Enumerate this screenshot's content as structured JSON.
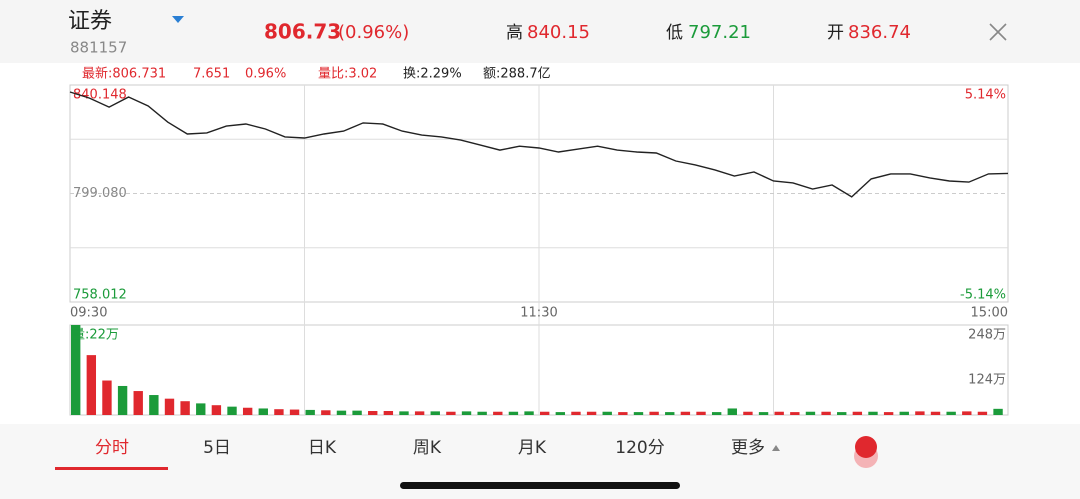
{
  "header": {
    "title": "证券",
    "code": "881157",
    "price": "806.73",
    "change": "(0.96%)",
    "high": {
      "label": "高",
      "value": "840.15"
    },
    "low": {
      "label": "低",
      "value": "797.21"
    },
    "open": {
      "label": "开",
      "value": "836.74"
    }
  },
  "info": [
    "最新:806.731",
    "7.651",
    "0.96%",
    "量比:3.02",
    "换:2.29%",
    "额:288.7亿"
  ],
  "chart_data": [
    {
      "type": "line",
      "color": "#222222",
      "x": [
        0,
        5,
        10,
        15,
        20,
        25,
        30,
        35,
        40,
        45,
        50,
        55,
        60,
        65,
        70,
        75,
        80,
        85,
        90,
        95,
        100,
        105,
        110,
        115,
        120,
        125,
        130,
        135,
        140,
        145,
        150,
        155,
        160,
        165,
        170,
        175,
        180,
        185,
        190,
        195,
        200,
        205,
        210,
        215,
        220,
        225,
        230,
        235,
        240
      ],
      "values": [
        837.5,
        835.2,
        831.8,
        835.6,
        832.2,
        826.1,
        821.6,
        822.0,
        824.6,
        825.4,
        823.5,
        820.5,
        820.1,
        821.6,
        822.7,
        825.8,
        825.4,
        822.7,
        821.2,
        820.5,
        819.3,
        817.4,
        815.5,
        817.0,
        816.3,
        814.8,
        815.9,
        817.0,
        815.5,
        814.8,
        814.4,
        811.4,
        809.9,
        808.0,
        805.7,
        807.2,
        803.8,
        803.1,
        800.8,
        802.3,
        797.8,
        804.6,
        806.5,
        806.5,
        805.0,
        803.8,
        803.4,
        806.5,
        806.7
      ],
      "xlim": [
        0,
        240
      ],
      "xticks": [
        {
          "value": 0,
          "label": "09:30"
        },
        {
          "value": 120,
          "label": "11:30"
        },
        {
          "value": 240,
          "label": "15:00"
        }
      ],
      "ylim": [
        758.012,
        840.148
      ],
      "yticks": [
        758.012,
        {
          "value": 799.08,
          "label": "799.080"
        },
        840.148
      ],
      "y2lim": [
        -5.14,
        5.14
      ],
      "y2ticks": [
        {
          "value": -5.14,
          "label": "-5.14%"
        },
        {
          "value": 5.14,
          "label": "5.14%"
        }
      ],
      "grid": true
    },
    {
      "type": "bar",
      "title": "量:22万",
      "x": [
        0,
        4,
        8,
        12,
        16,
        20,
        24,
        28,
        32,
        36,
        40,
        44,
        48,
        52,
        56,
        60,
        64,
        68,
        72,
        76,
        80,
        84,
        88,
        92,
        96,
        100,
        104,
        108,
        112,
        116,
        120,
        124,
        128,
        132,
        136,
        140,
        144,
        148,
        152,
        156,
        160,
        164,
        168,
        172,
        176,
        180,
        184,
        188,
        192,
        196,
        200,
        204,
        208,
        212,
        216,
        220,
        224,
        228,
        232,
        236
      ],
      "values": [
        248,
        165,
        95,
        80,
        66,
        55,
        45,
        38,
        32,
        27,
        23,
        20,
        18,
        16,
        15,
        14,
        13,
        12,
        12,
        11,
        11,
        10,
        10,
        10,
        9,
        10,
        9,
        9,
        9,
        10,
        9,
        8,
        9,
        9,
        9,
        8,
        8,
        9,
        8,
        9,
        9,
        8,
        18,
        9,
        8,
        9,
        8,
        9,
        9,
        8,
        9,
        9,
        8,
        9,
        10,
        9,
        9,
        10,
        9,
        17
      ],
      "colors": [
        "#1b9b3a",
        "#e0282e",
        "#e0282e",
        "#1b9b3a",
        "#e0282e",
        "#1b9b3a",
        "#e0282e",
        "#e0282e",
        "#1b9b3a",
        "#e0282e",
        "#1b9b3a",
        "#e0282e",
        "#1b9b3a",
        "#e0282e",
        "#e0282e",
        "#1b9b3a",
        "#e0282e",
        "#1b9b3a",
        "#1b9b3a",
        "#e0282e",
        "#e0282e",
        "#1b9b3a",
        "#e0282e",
        "#1b9b3a",
        "#e0282e",
        "#1b9b3a",
        "#1b9b3a",
        "#e0282e",
        "#1b9b3a",
        "#1b9b3a",
        "#e0282e",
        "#1b9b3a",
        "#e0282e",
        "#e0282e",
        "#1b9b3a",
        "#e0282e",
        "#1b9b3a",
        "#e0282e",
        "#1b9b3a",
        "#e0282e",
        "#e0282e",
        "#1b9b3a",
        "#1b9b3a",
        "#e0282e",
        "#1b9b3a",
        "#e0282e",
        "#e0282e",
        "#1b9b3a",
        "#e0282e",
        "#1b9b3a",
        "#e0282e",
        "#1b9b3a",
        "#e0282e",
        "#1b9b3a",
        "#e0282e",
        "#e0282e",
        "#1b9b3a",
        "#e0282e",
        "#e0282e",
        "#1b9b3a"
      ],
      "xlim": [
        0,
        240
      ],
      "ylim": [
        0,
        248
      ],
      "yticks": [
        {
          "value": 124,
          "label": "124万"
        },
        {
          "value": 248,
          "label": "248万"
        }
      ]
    }
  ],
  "tabs": [
    "分时",
    "5日",
    "日K",
    "周K",
    "月K",
    "120分",
    "更多"
  ]
}
